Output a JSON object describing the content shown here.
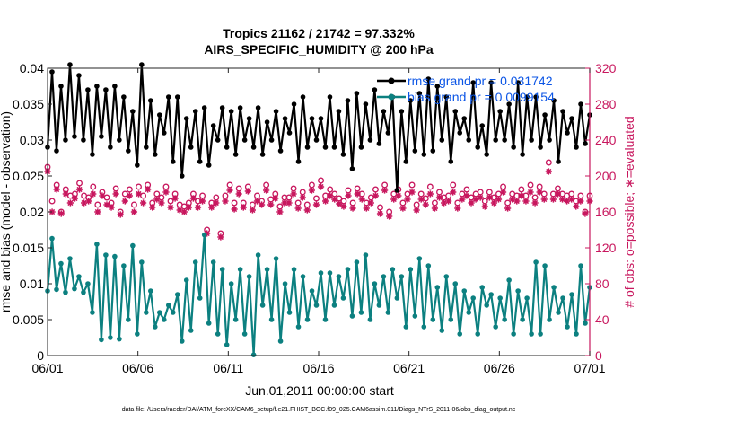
{
  "chart_data": {
    "type": "line",
    "title_line1": "Tropics 21162 / 21742 = 97.332%",
    "title_line2": "AIRS_SPECIFIC_HUMIDITY @ 200 hPa",
    "xlabel": "Jun.01,2011 00:00:00 start",
    "ylabel_left": "rmse and bias (model - observation)",
    "ylabel_right": "# of obs: o=possible; ∗=evaluated",
    "x_tick_labels": [
      "06/01",
      "06/06",
      "06/11",
      "06/16",
      "06/21",
      "06/26",
      "07/01"
    ],
    "x_range_days": [
      0,
      30
    ],
    "y_left_ticks": [
      "0",
      "0.005",
      "0.01",
      "0.015",
      "0.02",
      "0.025",
      "0.03",
      "0.035",
      "0.04"
    ],
    "y_left_range": [
      0,
      0.04
    ],
    "y_right_ticks": [
      "0",
      "40",
      "80",
      "120",
      "160",
      "200",
      "240",
      "280",
      "320"
    ],
    "y_right_range": [
      0,
      320
    ],
    "footer": "data file: /Users/raeder/DAI/ATM_forcXX/CAM6_setup/f.e21.FHIST_BGC.f09_025.CAM6assim.011/Diags_NTrS_2011-06/obs_diag_output.nc",
    "colors": {
      "rmse": "#000000",
      "bias": "#0c8080",
      "counts": "#c8175e",
      "right_axis": "#c8175e",
      "legend_text": "#0b55e6"
    },
    "legend": [
      {
        "name": "rmse",
        "label": "rmse grand pr = 0.031742"
      },
      {
        "name": "bias",
        "label": "bias grand pr = 0.0099154"
      }
    ],
    "series": [
      {
        "name": "rmse",
        "axis": "left",
        "values": [
          0.029,
          0.0395,
          0.0285,
          0.0375,
          0.03,
          0.0405,
          0.0305,
          0.039,
          0.03,
          0.037,
          0.028,
          0.0375,
          0.0305,
          0.037,
          0.029,
          0.0375,
          0.03,
          0.036,
          0.0285,
          0.034,
          0.0265,
          0.0405,
          0.029,
          0.0355,
          0.028,
          0.0335,
          0.031,
          0.036,
          0.027,
          0.036,
          0.025,
          0.033,
          0.029,
          0.034,
          0.027,
          0.0345,
          0.0265,
          0.032,
          0.03,
          0.0345,
          0.029,
          0.034,
          0.028,
          0.0345,
          0.03,
          0.033,
          0.029,
          0.0345,
          0.028,
          0.0325,
          0.03,
          0.034,
          0.0285,
          0.033,
          0.031,
          0.035,
          0.027,
          0.036,
          0.029,
          0.033,
          0.03,
          0.033,
          0.029,
          0.036,
          0.029,
          0.034,
          0.028,
          0.0355,
          0.026,
          0.0365,
          0.029,
          0.035,
          0.03,
          0.037,
          0.0295,
          0.034,
          0.031,
          0.036,
          0.023,
          0.034,
          0.027,
          0.0355,
          0.0285,
          0.0365,
          0.028,
          0.0385,
          0.0285,
          0.0375,
          0.03,
          0.036,
          0.027,
          0.034,
          0.031,
          0.033,
          0.03,
          0.038,
          0.029,
          0.032,
          0.028,
          0.038,
          0.03,
          0.034,
          0.03,
          0.035,
          0.029,
          0.038,
          0.028,
          0.036,
          0.03,
          0.036,
          0.029,
          0.0335,
          0.03,
          0.0355,
          0.027,
          0.034,
          0.031,
          0.033,
          0.029,
          0.035,
          0.0295,
          0.0335
        ]
      },
      {
        "name": "bias",
        "axis": "left",
        "values": [
          0.009,
          0.0163,
          0.0092,
          0.0128,
          0.0088,
          0.0135,
          0.0093,
          0.011,
          0.0088,
          0.01,
          0.006,
          0.0155,
          0.0022,
          0.014,
          0.0025,
          0.0138,
          0.0023,
          0.0125,
          0.005,
          0.0153,
          0.003,
          0.013,
          0.006,
          0.009,
          0.004,
          0.006,
          0.005,
          0.007,
          0.006,
          0.0085,
          0.002,
          0.0105,
          0.0035,
          0.013,
          0.008,
          0.0168,
          0.0045,
          0.013,
          0.003,
          0.012,
          0.0015,
          0.01,
          0.005,
          0.012,
          0.003,
          0.011,
          0.0001,
          0.014,
          0.007,
          0.012,
          0.005,
          0.0135,
          0.002,
          0.01,
          0.006,
          0.012,
          0.004,
          0.011,
          0.005,
          0.009,
          0.007,
          0.0115,
          0.005,
          0.0115,
          0.007,
          0.011,
          0.008,
          0.012,
          0.0055,
          0.013,
          0.006,
          0.014,
          0.005,
          0.01,
          0.007,
          0.011,
          0.006,
          0.012,
          0.008,
          0.011,
          0.004,
          0.012,
          0.0055,
          0.0135,
          0.004,
          0.0125,
          0.005,
          0.0095,
          0.0035,
          0.011,
          0.005,
          0.01,
          0.003,
          0.009,
          0.006,
          0.008,
          0.003,
          0.0095,
          0.007,
          0.0085,
          0.004,
          0.008,
          0.005,
          0.0105,
          0.003,
          0.009,
          0.005,
          0.008,
          0.003,
          0.013,
          0.003,
          0.0125,
          0.005,
          0.0095,
          0.006,
          0.008,
          0.004,
          0.0085,
          0.003,
          0.0125,
          0.0045,
          0.0095
        ]
      },
      {
        "name": "possible",
        "axis": "right",
        "marker": "o",
        "values": [
          210,
          172,
          190,
          160,
          185,
          178,
          180,
          192,
          178,
          176,
          188,
          168,
          182,
          176,
          170,
          186,
          160,
          180,
          185,
          168,
          188,
          178,
          190,
          170,
          180,
          176,
          188,
          172,
          180,
          168,
          166,
          170,
          180,
          172,
          178,
          140,
          170,
          176,
          136,
          178,
          190,
          170,
          186,
          170,
          188,
          168,
          178,
          172,
          190,
          174,
          180,
          166,
          176,
          176,
          186,
          170,
          182,
          168,
          190,
          175,
          195,
          178,
          185,
          180,
          175,
          172,
          184,
          170,
          186,
          180,
          170,
          176,
          185,
          165,
          190,
          160,
          180,
          185,
          170,
          180,
          190,
          168,
          180,
          175,
          188,
          170,
          182,
          176,
          178,
          190,
          170,
          180,
          185,
          176,
          180,
          182,
          172,
          182,
          176,
          180,
          188,
          170,
          180,
          178,
          185,
          178,
          190,
          176,
          188,
          180,
          215,
          180,
          186,
          180,
          178,
          180,
          172,
          178,
          160,
          178
        ]
      },
      {
        "name": "evaluated",
        "axis": "right",
        "marker": "*",
        "values": [
          205,
          160,
          185,
          158,
          180,
          170,
          175,
          185,
          170,
          172,
          180,
          160,
          178,
          168,
          165,
          180,
          157,
          172,
          178,
          160,
          180,
          170,
          185,
          165,
          174,
          170,
          182,
          165,
          175,
          162,
          160,
          165,
          175,
          165,
          172,
          136,
          165,
          170,
          132,
          172,
          184,
          163,
          180,
          165,
          183,
          162,
          172,
          168,
          184,
          168,
          175,
          160,
          170,
          170,
          180,
          164,
          176,
          162,
          184,
          168,
          188,
          172,
          178,
          174,
          169,
          166,
          178,
          164,
          180,
          174,
          164,
          170,
          178,
          158,
          184,
          155,
          174,
          178,
          164,
          174,
          182,
          162,
          174,
          168,
          180,
          164,
          176,
          170,
          172,
          182,
          164,
          174,
          178,
          170,
          174,
          176,
          166,
          176,
          170,
          174,
          182,
          164,
          174,
          172,
          178,
          172,
          182,
          170,
          182,
          174,
          205,
          174,
          180,
          174,
          172,
          174,
          166,
          172,
          158,
          172
        ]
      }
    ]
  }
}
